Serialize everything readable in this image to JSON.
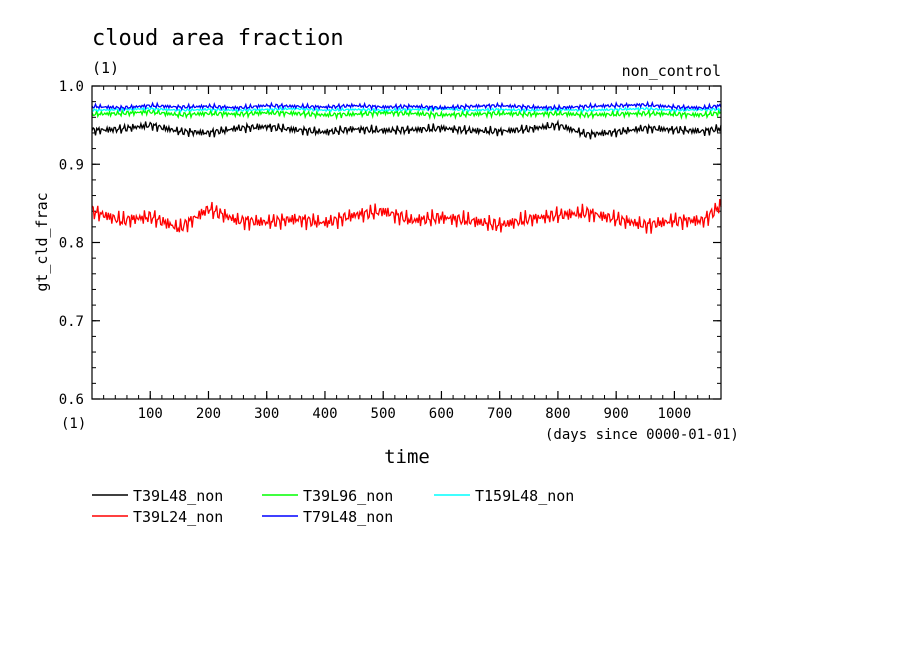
{
  "figure": {
    "title": "cloud area fraction",
    "title_unit": "(1)",
    "corner_label": "non_control",
    "ylabel": "gt_cld_frac",
    "y_unit": "(1)",
    "xlabel": "time",
    "x_unit_note": "(days since 0000-01-01)"
  },
  "chart_data": {
    "type": "line",
    "title": "cloud area fraction",
    "xlabel": "time",
    "ylabel": "gt_cld_frac",
    "xlim": [
      0,
      1080
    ],
    "ylim": [
      0.6,
      1.0
    ],
    "x_ticks": [
      100,
      200,
      300,
      400,
      500,
      600,
      700,
      800,
      900,
      1000
    ],
    "y_ticks": [
      0.6,
      0.7,
      0.8,
      0.9,
      1.0
    ],
    "y_tick_labels": [
      "0.6",
      "0.7",
      "0.8",
      "0.9",
      "1.0"
    ],
    "grid": false,
    "legend_position": "bottom",
    "x": [
      0,
      50,
      100,
      150,
      200,
      250,
      300,
      350,
      400,
      450,
      500,
      550,
      600,
      650,
      700,
      750,
      800,
      850,
      900,
      950,
      1000,
      1050,
      1080
    ],
    "series": [
      {
        "name": "T39L48_non",
        "color": "#000000",
        "values": [
          0.943,
          0.945,
          0.95,
          0.942,
          0.94,
          0.946,
          0.948,
          0.944,
          0.941,
          0.945,
          0.943,
          0.944,
          0.946,
          0.943,
          0.942,
          0.945,
          0.95,
          0.938,
          0.941,
          0.946,
          0.944,
          0.942,
          0.946
        ]
      },
      {
        "name": "T39L24_non",
        "color": "#ff0000",
        "values": [
          0.84,
          0.828,
          0.833,
          0.818,
          0.843,
          0.828,
          0.826,
          0.83,
          0.825,
          0.835,
          0.84,
          0.828,
          0.832,
          0.828,
          0.822,
          0.83,
          0.835,
          0.838,
          0.83,
          0.822,
          0.828,
          0.828,
          0.848
        ]
      },
      {
        "name": "T39L96_non",
        "color": "#00ff00",
        "values": [
          0.964,
          0.965,
          0.967,
          0.963,
          0.965,
          0.964,
          0.966,
          0.965,
          0.963,
          0.964,
          0.966,
          0.965,
          0.963,
          0.964,
          0.965,
          0.964,
          0.965,
          0.963,
          0.964,
          0.965,
          0.964,
          0.963,
          0.966
        ]
      },
      {
        "name": "T79L48_non",
        "color": "#0000ff",
        "values": [
          0.974,
          0.972,
          0.975,
          0.973,
          0.974,
          0.972,
          0.975,
          0.974,
          0.973,
          0.975,
          0.973,
          0.974,
          0.972,
          0.974,
          0.975,
          0.973,
          0.972,
          0.974,
          0.975,
          0.976,
          0.973,
          0.972,
          0.975
        ]
      },
      {
        "name": "T159L48_non",
        "color": "#00ffff",
        "values": [
          0.969,
          0.97,
          0.971,
          0.969,
          0.97,
          0.969,
          0.97,
          0.971,
          0.969,
          0.97,
          0.969,
          0.97,
          0.971,
          0.969,
          0.97,
          0.969,
          0.97,
          0.969,
          0.97,
          0.971,
          0.969,
          0.97,
          0.97
        ]
      }
    ]
  }
}
